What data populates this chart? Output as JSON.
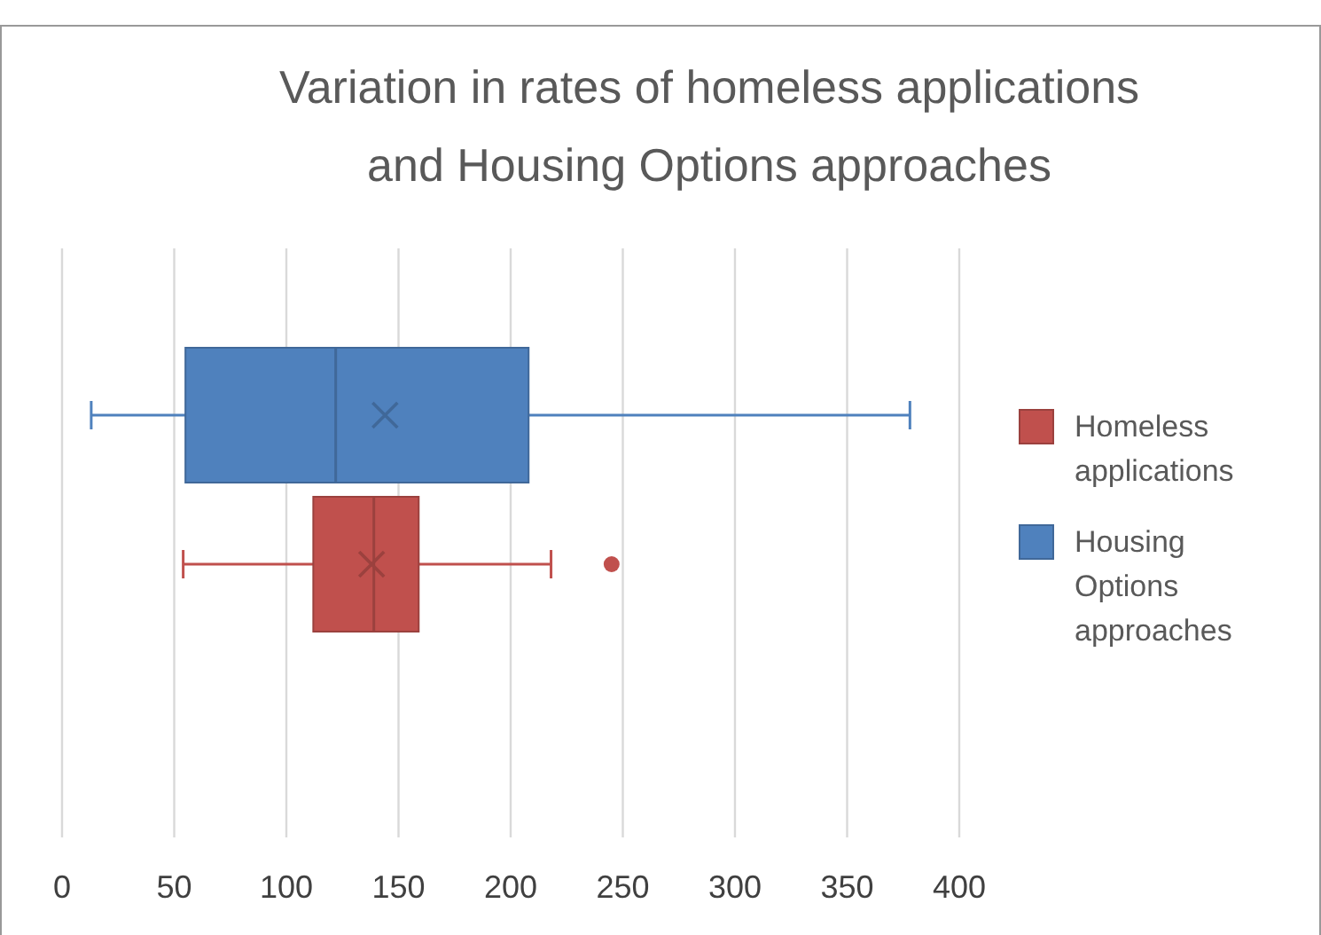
{
  "chart_data": {
    "type": "box",
    "title": "Variation in rates of homeless applications and Housing Options approaches",
    "orientation": "horizontal",
    "categories": [
      null
    ],
    "series": [
      {
        "name": "Homeless applications",
        "color": "#c0504d",
        "boxes": [
          {
            "low": 54,
            "q1": 112,
            "median": 139,
            "q3": 159,
            "high": 218,
            "mean": 138,
            "outliers": [
              245
            ]
          }
        ]
      },
      {
        "name": "Housing Options approaches",
        "color": "#4f81bd",
        "boxes": [
          {
            "low": 13,
            "q1": 55,
            "median": 122,
            "q3": 208,
            "high": 378,
            "mean": 144
          }
        ]
      }
    ],
    "xlim": [
      0,
      400
    ],
    "xticks": [
      0,
      50,
      100,
      150,
      200,
      250,
      300,
      350,
      400
    ],
    "grid": "x",
    "legend": "right"
  }
}
